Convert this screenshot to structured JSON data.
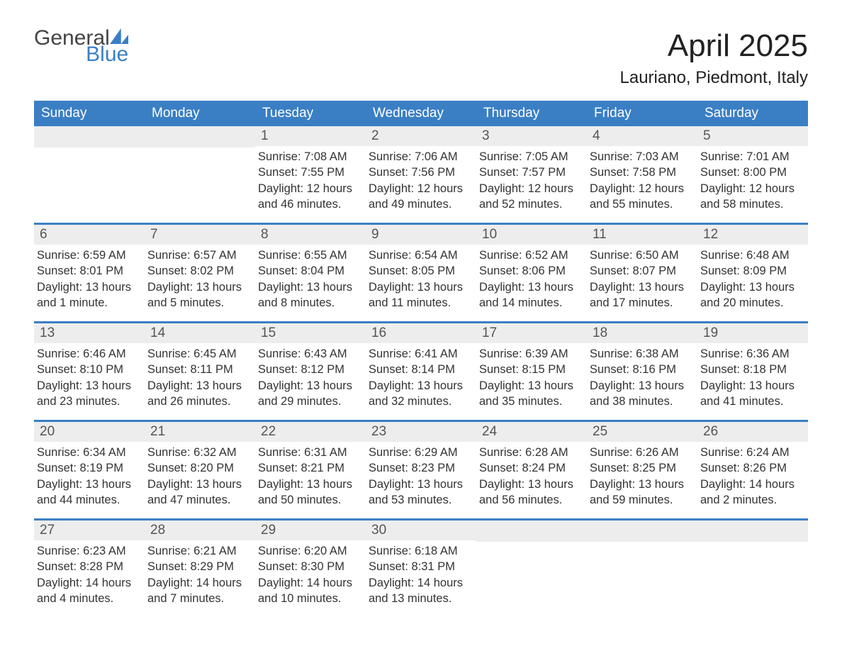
{
  "logo": {
    "text1": "General",
    "text2": "Blue"
  },
  "title": "April 2025",
  "location": "Lauriano, Piedmont, Italy",
  "colors": {
    "brand_blue": "#3a7fc4",
    "header_text": "#ffffff",
    "date_strip_bg": "#ededed",
    "body_text": "#333333",
    "page_bg": "#ffffff"
  },
  "calendar": {
    "headers": [
      "Sunday",
      "Monday",
      "Tuesday",
      "Wednesday",
      "Thursday",
      "Friday",
      "Saturday"
    ],
    "weeks": [
      [
        {
          "blank": true
        },
        {
          "blank": true
        },
        {
          "d": "1",
          "sr": "Sunrise: 7:08 AM",
          "ss": "Sunset: 7:55 PM",
          "dl": "Daylight: 12 hours and 46 minutes."
        },
        {
          "d": "2",
          "sr": "Sunrise: 7:06 AM",
          "ss": "Sunset: 7:56 PM",
          "dl": "Daylight: 12 hours and 49 minutes."
        },
        {
          "d": "3",
          "sr": "Sunrise: 7:05 AM",
          "ss": "Sunset: 7:57 PM",
          "dl": "Daylight: 12 hours and 52 minutes."
        },
        {
          "d": "4",
          "sr": "Sunrise: 7:03 AM",
          "ss": "Sunset: 7:58 PM",
          "dl": "Daylight: 12 hours and 55 minutes."
        },
        {
          "d": "5",
          "sr": "Sunrise: 7:01 AM",
          "ss": "Sunset: 8:00 PM",
          "dl": "Daylight: 12 hours and 58 minutes."
        }
      ],
      [
        {
          "d": "6",
          "sr": "Sunrise: 6:59 AM",
          "ss": "Sunset: 8:01 PM",
          "dl": "Daylight: 13 hours and 1 minute."
        },
        {
          "d": "7",
          "sr": "Sunrise: 6:57 AM",
          "ss": "Sunset: 8:02 PM",
          "dl": "Daylight: 13 hours and 5 minutes."
        },
        {
          "d": "8",
          "sr": "Sunrise: 6:55 AM",
          "ss": "Sunset: 8:04 PM",
          "dl": "Daylight: 13 hours and 8 minutes."
        },
        {
          "d": "9",
          "sr": "Sunrise: 6:54 AM",
          "ss": "Sunset: 8:05 PM",
          "dl": "Daylight: 13 hours and 11 minutes."
        },
        {
          "d": "10",
          "sr": "Sunrise: 6:52 AM",
          "ss": "Sunset: 8:06 PM",
          "dl": "Daylight: 13 hours and 14 minutes."
        },
        {
          "d": "11",
          "sr": "Sunrise: 6:50 AM",
          "ss": "Sunset: 8:07 PM",
          "dl": "Daylight: 13 hours and 17 minutes."
        },
        {
          "d": "12",
          "sr": "Sunrise: 6:48 AM",
          "ss": "Sunset: 8:09 PM",
          "dl": "Daylight: 13 hours and 20 minutes."
        }
      ],
      [
        {
          "d": "13",
          "sr": "Sunrise: 6:46 AM",
          "ss": "Sunset: 8:10 PM",
          "dl": "Daylight: 13 hours and 23 minutes."
        },
        {
          "d": "14",
          "sr": "Sunrise: 6:45 AM",
          "ss": "Sunset: 8:11 PM",
          "dl": "Daylight: 13 hours and 26 minutes."
        },
        {
          "d": "15",
          "sr": "Sunrise: 6:43 AM",
          "ss": "Sunset: 8:12 PM",
          "dl": "Daylight: 13 hours and 29 minutes."
        },
        {
          "d": "16",
          "sr": "Sunrise: 6:41 AM",
          "ss": "Sunset: 8:14 PM",
          "dl": "Daylight: 13 hours and 32 minutes."
        },
        {
          "d": "17",
          "sr": "Sunrise: 6:39 AM",
          "ss": "Sunset: 8:15 PM",
          "dl": "Daylight: 13 hours and 35 minutes."
        },
        {
          "d": "18",
          "sr": "Sunrise: 6:38 AM",
          "ss": "Sunset: 8:16 PM",
          "dl": "Daylight: 13 hours and 38 minutes."
        },
        {
          "d": "19",
          "sr": "Sunrise: 6:36 AM",
          "ss": "Sunset: 8:18 PM",
          "dl": "Daylight: 13 hours and 41 minutes."
        }
      ],
      [
        {
          "d": "20",
          "sr": "Sunrise: 6:34 AM",
          "ss": "Sunset: 8:19 PM",
          "dl": "Daylight: 13 hours and 44 minutes."
        },
        {
          "d": "21",
          "sr": "Sunrise: 6:32 AM",
          "ss": "Sunset: 8:20 PM",
          "dl": "Daylight: 13 hours and 47 minutes."
        },
        {
          "d": "22",
          "sr": "Sunrise: 6:31 AM",
          "ss": "Sunset: 8:21 PM",
          "dl": "Daylight: 13 hours and 50 minutes."
        },
        {
          "d": "23",
          "sr": "Sunrise: 6:29 AM",
          "ss": "Sunset: 8:23 PM",
          "dl": "Daylight: 13 hours and 53 minutes."
        },
        {
          "d": "24",
          "sr": "Sunrise: 6:28 AM",
          "ss": "Sunset: 8:24 PM",
          "dl": "Daylight: 13 hours and 56 minutes."
        },
        {
          "d": "25",
          "sr": "Sunrise: 6:26 AM",
          "ss": "Sunset: 8:25 PM",
          "dl": "Daylight: 13 hours and 59 minutes."
        },
        {
          "d": "26",
          "sr": "Sunrise: 6:24 AM",
          "ss": "Sunset: 8:26 PM",
          "dl": "Daylight: 14 hours and 2 minutes."
        }
      ],
      [
        {
          "d": "27",
          "sr": "Sunrise: 6:23 AM",
          "ss": "Sunset: 8:28 PM",
          "dl": "Daylight: 14 hours and 4 minutes."
        },
        {
          "d": "28",
          "sr": "Sunrise: 6:21 AM",
          "ss": "Sunset: 8:29 PM",
          "dl": "Daylight: 14 hours and 7 minutes."
        },
        {
          "d": "29",
          "sr": "Sunrise: 6:20 AM",
          "ss": "Sunset: 8:30 PM",
          "dl": "Daylight: 14 hours and 10 minutes."
        },
        {
          "d": "30",
          "sr": "Sunrise: 6:18 AM",
          "ss": "Sunset: 8:31 PM",
          "dl": "Daylight: 14 hours and 13 minutes."
        },
        {
          "blank": true
        },
        {
          "blank": true
        },
        {
          "blank": true
        }
      ]
    ]
  }
}
